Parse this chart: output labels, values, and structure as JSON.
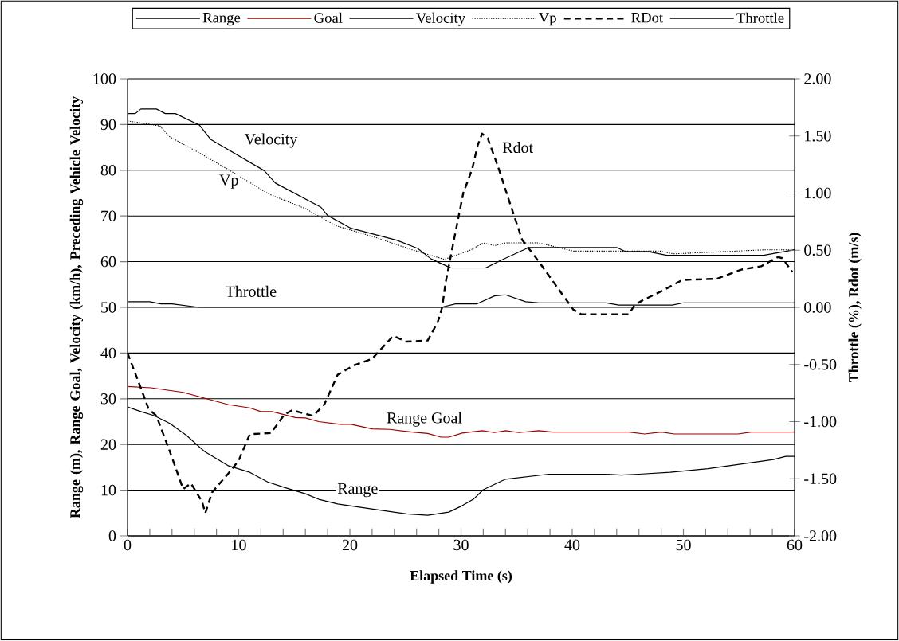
{
  "chart_data": {
    "type": "line",
    "xlabel": "Elapsed Time (s)",
    "ylabel": "Range (m), Range Goal, Velocity (km/h), Preceding Vehicle Velocity",
    "y2label": "Throttle (%), Rdot (m/s)",
    "xlim": [
      0,
      60
    ],
    "ylim": [
      0,
      100
    ],
    "y2lim": [
      -2,
      2
    ],
    "xticks": [
      0,
      {
        "value": 2,
        "label": null
      },
      {
        "value": 4,
        "label": null
      },
      {
        "value": 6,
        "label": null
      },
      {
        "value": 8,
        "label": null
      },
      10,
      {
        "value": 12,
        "label": null
      },
      {
        "value": 14,
        "label": null
      },
      {
        "value": 16,
        "label": null
      },
      {
        "value": 18,
        "label": null
      },
      20,
      {
        "value": 22,
        "label": null
      },
      {
        "value": 24,
        "label": null
      },
      {
        "value": 26,
        "label": null
      },
      {
        "value": 28,
        "label": null
      },
      30,
      {
        "value": 32,
        "label": null
      },
      {
        "value": 34,
        "label": null
      },
      {
        "value": 36,
        "label": null
      },
      {
        "value": 38,
        "label": null
      },
      40,
      {
        "value": 42,
        "label": null
      },
      {
        "value": 44,
        "label": null
      },
      {
        "value": 46,
        "label": null
      },
      {
        "value": 48,
        "label": null
      },
      50,
      {
        "value": 52,
        "label": null
      },
      {
        "value": 54,
        "label": null
      },
      {
        "value": 56,
        "label": null
      },
      {
        "value": 58,
        "label": null
      },
      60
    ],
    "yticks": [
      0,
      10,
      20,
      30,
      40,
      50,
      60,
      70,
      80,
      90,
      100
    ],
    "y2ticks": [
      {
        "value": -2,
        "label": "-2.00"
      },
      {
        "value": -1.5,
        "label": "-1.50"
      },
      {
        "value": -1,
        "label": "-1.00"
      },
      {
        "value": -0.5,
        "label": "-0.50"
      },
      {
        "value": 0,
        "label": "0.00"
      },
      {
        "value": 0.5,
        "label": "0.50"
      },
      {
        "value": 1,
        "label": "1.00"
      },
      {
        "value": 1.5,
        "label": "1.50"
      },
      {
        "value": 2,
        "label": "2.00"
      }
    ],
    "grid": "y",
    "legend": "top",
    "series": [
      {
        "name": "Range",
        "color": "#000000",
        "line_style": "solid",
        "x": [
          0,
          1.2,
          2.4,
          3.8,
          5.3,
          6.9,
          9.1,
          11,
          12.6,
          14.1,
          16,
          17.2,
          18.9,
          22.2,
          25.1,
          27,
          28.9,
          30.1,
          31.1,
          32,
          34,
          37.9,
          43,
          44.4,
          46,
          48.8,
          52.2,
          58.1,
          59.2,
          60
        ],
        "values": [
          28.2,
          27.2,
          26.3,
          24.6,
          22,
          18.5,
          15.3,
          13.9,
          11.8,
          10.6,
          9.2,
          8,
          7,
          5.8,
          4.8,
          4.5,
          5.2,
          6.6,
          8,
          10.1,
          12.4,
          13.5,
          13.5,
          13.3,
          13.5,
          13.9,
          14.7,
          16.7,
          17.4,
          17.4
        ]
      },
      {
        "name": "Goal",
        "color": "#990000",
        "line_style": "solid",
        "x": [
          0,
          2.1,
          5,
          7.1,
          9.1,
          11,
          12,
          13,
          15.1,
          16,
          17.2,
          19.1,
          20.1,
          22,
          23.6,
          25.6,
          27,
          28.2,
          28.9,
          30.1,
          31.9,
          33,
          34,
          35.2,
          37,
          38.2,
          45.1,
          46.5,
          48,
          49.2,
          54.9,
          56.1,
          60
        ],
        "values": [
          32.7,
          32.4,
          31.4,
          30,
          28.7,
          28,
          27.2,
          27.2,
          25.9,
          25.8,
          25,
          24.4,
          24.4,
          23.4,
          23.3,
          22.7,
          22.4,
          21.6,
          21.6,
          22.5,
          23,
          22.6,
          23,
          22.6,
          23,
          22.7,
          22.7,
          22.3,
          22.7,
          22.3,
          22.3,
          22.7,
          22.7
        ]
      },
      {
        "name": "Velocity",
        "color": "#000000",
        "line_style": "solid",
        "x": [
          0,
          0.7,
          1.2,
          2.6,
          3.4,
          4.3,
          6.45,
          7.5,
          12.3,
          13.3,
          17.4,
          18,
          20.1,
          24.2,
          26.1,
          27.3,
          29.1,
          32.2,
          33.5,
          36.1,
          44,
          44.8,
          46.8,
          48.5,
          57.2,
          60
        ],
        "values": [
          92.4,
          92.4,
          93.4,
          93.4,
          92.4,
          92.4,
          89.9,
          86.7,
          79.9,
          77.2,
          71.9,
          70.1,
          67.3,
          64.7,
          62.9,
          60.6,
          58.6,
          58.6,
          60.2,
          63.1,
          63.1,
          62.2,
          62.2,
          61.4,
          61.4,
          62.6
        ]
      },
      {
        "name": "Vp",
        "color": "#000000",
        "line_style": "dotted",
        "x": [
          0,
          2.9,
          3.8,
          6.45,
          9.1,
          12.7,
          16,
          18.7,
          22.3,
          25.6,
          28.5,
          30.9,
          32,
          33,
          34,
          37,
          40.1,
          45.1,
          47.9,
          49.1,
          57.4,
          60
        ],
        "values": [
          90.8,
          89.7,
          87.3,
          83.8,
          80.1,
          74.8,
          71.6,
          67.9,
          65.3,
          62.6,
          60.5,
          62.6,
          64.1,
          63.5,
          64.1,
          64.1,
          62.3,
          62.3,
          62.3,
          61.7,
          62.6,
          62.6
        ]
      },
      {
        "name": "RDot",
        "color": "#000000",
        "line_style": "dashed",
        "axis": "y2",
        "x": [
          0,
          0.9,
          1.9,
          2.6,
          3.8,
          5,
          5.7,
          6.7,
          7,
          7.6,
          9.1,
          10,
          11,
          12.9,
          14.1,
          14.8,
          16.7,
          17.7,
          18.9,
          20.3,
          22,
          23.9,
          25.1,
          27,
          27.9,
          28.3,
          28.6,
          29.3,
          30.2,
          31,
          31.5,
          31.9,
          32.4,
          33.4,
          34.3,
          35.5,
          37,
          38.4,
          40.1,
          40.8,
          45.1,
          45.6,
          46.3,
          48.2,
          49.9,
          53,
          55.2,
          57,
          58.5,
          58.9,
          59.8
        ],
        "values": [
          -0.4,
          -0.63,
          -0.89,
          -0.95,
          -1.26,
          -1.59,
          -1.54,
          -1.7,
          -1.8,
          -1.62,
          -1.45,
          -1.34,
          -1.11,
          -1.1,
          -0.94,
          -0.9,
          -0.95,
          -0.85,
          -0.59,
          -0.51,
          -0.45,
          -0.25,
          -0.3,
          -0.29,
          -0.13,
          0.0,
          0.21,
          0.56,
          1.0,
          1.21,
          1.42,
          1.52,
          1.48,
          1.21,
          0.94,
          0.59,
          0.4,
          0.21,
          -0.02,
          -0.06,
          -0.06,
          0.02,
          0.06,
          0.15,
          0.24,
          0.25,
          0.33,
          0.36,
          0.44,
          0.43,
          0.31
        ]
      },
      {
        "name": "Throttle",
        "color": "#000000",
        "line_style": "solid",
        "axis": "y2",
        "x": [
          0,
          2,
          3,
          4,
          6.45,
          28.2,
          29.5,
          31.4,
          33,
          34,
          35.8,
          37,
          43,
          44.2,
          49,
          50,
          60
        ],
        "values": [
          0.05,
          0.05,
          0.03,
          0.03,
          0,
          0,
          0.03,
          0.03,
          0.1,
          0.11,
          0.05,
          0.04,
          0.04,
          0.02,
          0.02,
          0.04,
          0.04
        ]
      }
    ],
    "annotations": [
      "Velocity",
      "Vp",
      "Rdot",
      "Throttle",
      "Range Goal",
      "Range"
    ]
  }
}
